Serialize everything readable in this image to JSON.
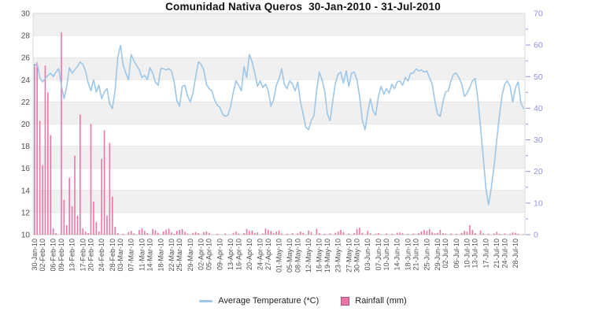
{
  "title": "Comunidad Nativa Queros  30-Jan-2010 - 31-Jul-2010",
  "legend": {
    "temperature": {
      "label": "Average Temperature (*C)",
      "marker": "line-icon"
    },
    "rainfall": {
      "label": "Rainfall (mm)",
      "marker": "square-icon"
    }
  },
  "colors": {
    "temperature_line": "#9CC7E9",
    "rainfall_bar": "#EC74A9",
    "right_axis_text": "#9191DE",
    "left_axis_text": "#4D4D4D",
    "band_gray": "#F0F0F0",
    "gridline": "#E7E7E7",
    "plot_border": "#D8D8D8"
  },
  "chart_data": {
    "type": "combo",
    "title": "Comunidad Nativa Queros  30-Jan-2010 - 31-Jul-2010",
    "x_start_date": "30-Jan-10",
    "x_end_date": "31-Jul-10",
    "grid": "horizontal-only",
    "legend_position": "bottom-center",
    "left_axis": {
      "label": "",
      "min": 10,
      "max": 30,
      "step": 2,
      "series": "Average Temperature (*C)"
    },
    "right_axis": {
      "label": "",
      "min": 0,
      "max": 70,
      "step": 10,
      "minor_step": 5,
      "series": "Rainfall (mm)"
    },
    "x_labels": [
      "30-Jan-10",
      "02-Feb-10",
      "06-Feb-10",
      "09-Feb-10",
      "13-Feb-10",
      "17-Feb-10",
      "20-Feb-10",
      "24-Feb-10",
      "28-Feb-10",
      "03-Mar-10",
      "07-Mar-10",
      "11-Mar-10",
      "14-Mar-10",
      "18-Mar-10",
      "22-Mar-10",
      "25-Mar-10",
      "29-Mar-10",
      "02-Apr-10",
      "05-Apr-10",
      "09-Apr-10",
      "13-Apr-10",
      "16-Apr-10",
      "20-Apr-10",
      "24-Apr-10",
      "27-Apr-10",
      "01-May-10",
      "05-May-10",
      "08-May-10",
      "12-May-10",
      "16-May-10",
      "19-May-10",
      "23-May-10",
      "27-May-10",
      "30-May-10",
      "03-Jun-10",
      "07-Jun-10",
      "10-Jun-10",
      "14-Jun-10",
      "18-Jun-10",
      "21-Jun-10",
      "25-Jun-10",
      "29-Jun-10",
      "02-Jul-10",
      "06-Jul-10",
      "10-Jul-10",
      "13-Jul-10",
      "17-Jul-10",
      "21-Jul-10",
      "24-Jul-10",
      "28-Jul-10"
    ],
    "x_label_days": [
      0,
      3,
      7,
      10,
      14,
      18,
      21,
      25,
      29,
      32,
      36,
      40,
      43,
      47,
      51,
      54,
      58,
      62,
      65,
      69,
      73,
      76,
      80,
      84,
      87,
      91,
      95,
      98,
      102,
      106,
      109,
      113,
      117,
      120,
      124,
      128,
      131,
      135,
      139,
      142,
      146,
      150,
      153,
      157,
      161,
      164,
      168,
      172,
      175,
      179
    ],
    "series": [
      {
        "name": "Average Temperature (*C)",
        "type": "line",
        "axis": "left",
        "color": "#9CC7E9",
        "values": [
          25.2,
          25.5,
          24.2,
          23.8,
          24.1,
          24.4,
          24.6,
          24.3,
          24.7,
          25.0,
          23.5,
          22.3,
          23.4,
          25.1,
          24.6,
          24.9,
          25.2,
          25.6,
          25.4,
          24.8,
          23.7,
          23.0,
          24.0,
          22.9,
          23.5,
          22.3,
          22.9,
          23.2,
          21.8,
          21.4,
          23.0,
          26.0,
          27.1,
          25.3,
          24.6,
          24.0,
          26.3,
          25.7,
          25.3,
          24.9,
          24.2,
          24.4,
          24.0,
          25.1,
          24.6,
          23.8,
          23.5,
          25.0,
          25.0,
          24.9,
          25.0,
          24.8,
          23.8,
          22.1,
          21.6,
          23.4,
          23.5,
          22.5,
          22.0,
          22.8,
          24.3,
          25.6,
          25.4,
          24.9,
          23.6,
          23.2,
          23.0,
          22.2,
          21.7,
          21.5,
          20.9,
          20.7,
          20.8,
          21.6,
          22.9,
          23.9,
          23.5,
          23.0,
          25.2,
          24.2,
          26.3,
          25.6,
          24.6,
          23.4,
          23.9,
          23.3,
          23.6,
          23.0,
          21.6,
          22.2,
          23.5,
          24.1,
          25.0,
          23.6,
          23.2,
          23.9,
          23.6,
          23.0,
          23.8,
          22.0,
          20.9,
          19.7,
          19.5,
          20.3,
          20.8,
          23.0,
          24.7,
          24.0,
          23.0,
          20.9,
          20.3,
          22.1,
          23.7,
          24.5,
          24.7,
          23.7,
          24.8,
          23.4,
          24.6,
          24.7,
          24.0,
          22.5,
          20.4,
          19.5,
          21.0,
          22.3,
          21.2,
          20.8,
          22.5,
          23.4,
          22.7,
          23.2,
          22.8,
          23.6,
          23.2,
          23.8,
          23.9,
          23.5,
          24.2,
          23.9,
          24.6,
          24.6,
          25.0,
          24.8,
          24.9,
          24.7,
          24.8,
          24.2,
          23.6,
          22.1,
          20.9,
          20.7,
          22.0,
          22.9,
          23.0,
          23.9,
          24.5,
          24.6,
          24.2,
          23.6,
          22.5,
          22.8,
          23.3,
          23.9,
          24.1,
          22.3,
          19.7,
          17.0,
          14.2,
          12.7,
          14.2,
          16.1,
          18.5,
          20.7,
          22.6,
          23.6,
          23.9,
          23.4,
          22.0,
          23.3,
          23.8,
          21.9,
          21.4
        ]
      },
      {
        "name": "Rainfall (mm)",
        "type": "bar",
        "axis": "right",
        "color": "#EC74A9",
        "values": [
          54,
          54.5,
          36,
          22,
          53.5,
          45,
          31.5,
          2,
          0.5,
          0,
          64,
          11,
          3,
          18,
          9,
          25,
          6,
          38,
          2,
          1,
          0.5,
          35,
          10.5,
          4,
          1,
          24,
          33,
          6,
          29,
          12,
          2.5,
          0.5,
          0,
          0.3,
          0,
          0.8,
          1.2,
          0.4,
          0,
          1.5,
          2.0,
          1.2,
          0.5,
          0,
          1.8,
          1.4,
          0.6,
          0,
          1.0,
          1.6,
          1.9,
          0.7,
          0.3,
          1.2,
          1.5,
          1.8,
          0.9,
          0.4,
          0,
          0.6,
          0.8,
          0.5,
          0,
          0.8,
          1.0,
          0.6,
          0,
          0,
          0.3,
          0,
          0,
          0.4,
          0,
          0,
          0.6,
          1.0,
          0.4,
          0,
          0.5,
          1.8,
          1.2,
          1.3,
          0.6,
          0.7,
          0,
          0.4,
          2.0,
          1.5,
          1.2,
          0.5,
          1.0,
          1.3,
          0.4,
          0,
          0.3,
          0,
          0.5,
          0,
          0.4,
          1.0,
          0.6,
          0,
          1.3,
          0.8,
          0,
          1.8,
          0.5,
          0,
          0.3,
          0,
          0.4,
          0,
          0.6,
          1.0,
          1.5,
          0.8,
          0,
          0.4,
          0,
          0.5,
          1.8,
          2.2,
          0.6,
          0,
          1.2,
          0.5,
          0,
          0.3,
          0.5,
          0,
          0,
          0.4,
          0,
          0.3,
          0,
          0.6,
          0.7,
          0.5,
          0,
          0.3,
          0,
          0.4,
          0,
          0.5,
          1.0,
          1.5,
          1.2,
          1.8,
          0.8,
          0.4,
          0.6,
          1.5,
          0.5,
          0.3,
          0,
          0.4,
          0,
          0.3,
          0,
          0.6,
          1.2,
          1.0,
          3.0,
          1.5,
          0.5,
          0,
          1.3,
          0.4,
          0,
          0.3,
          0,
          0.4,
          0.9,
          0.3,
          0,
          0.4,
          0,
          0.3,
          0.7,
          0.6,
          0.3,
          0,
          0.2
        ]
      }
    ]
  }
}
